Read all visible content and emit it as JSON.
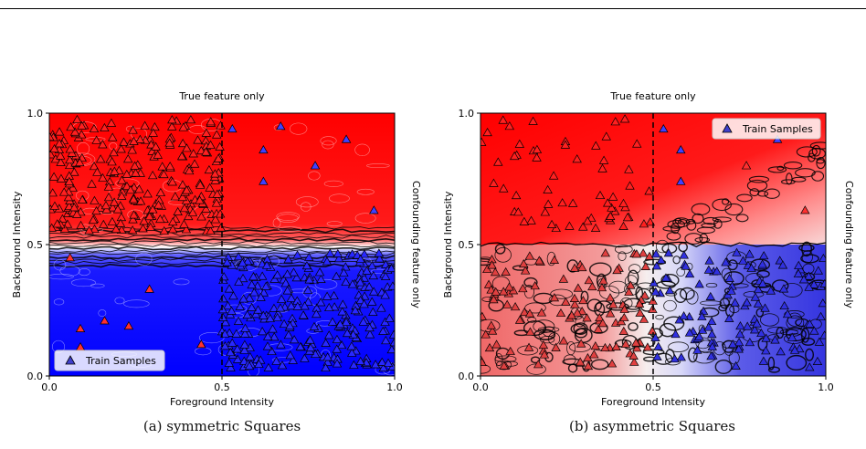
{
  "chart_data": [
    {
      "type": "scatter",
      "panel": "a",
      "title": "True feature only",
      "xlabel": "Foreground Intensity",
      "ylabel": "Background Intensity",
      "right_label": "Confounding feature only",
      "xlim": [
        0.0,
        1.0
      ],
      "ylim": [
        0.0,
        1.0
      ],
      "x_ticks": [
        "0.0",
        "0.5",
        "1.0"
      ],
      "y_ticks": [
        "0.0",
        "0.5",
        "1.0"
      ],
      "background": "contour",
      "decision_boundary": "horizontal",
      "boundary_y": 0.49,
      "dashed_vline_x": 0.5,
      "top_color": "#ff0000",
      "bottom_color": "#0000ff",
      "legend": {
        "label": "Train Samples",
        "position": "lower-left"
      },
      "series": [
        {
          "name": "Train Samples",
          "marker": "triangle",
          "clusters": [
            {
              "region": "x 0.0-0.5, y 0.55-0.98",
              "fill": "#ff2020",
              "count": 260
            },
            {
              "region": "x 0.5-1.0, y 0.03-0.47",
              "fill": "#2828ff",
              "count": 260
            }
          ],
          "points": [
            {
              "x": 0.53,
              "y": 0.94,
              "fill": "#4040ff"
            },
            {
              "x": 0.67,
              "y": 0.95,
              "fill": "#4040ff"
            },
            {
              "x": 0.62,
              "y": 0.86,
              "fill": "#4040ff"
            },
            {
              "x": 0.77,
              "y": 0.8,
              "fill": "#4040ff"
            },
            {
              "x": 0.86,
              "y": 0.9,
              "fill": "#4040ff"
            },
            {
              "x": 0.62,
              "y": 0.74,
              "fill": "#4040ff"
            },
            {
              "x": 0.94,
              "y": 0.63,
              "fill": "#4040ff"
            },
            {
              "x": 0.06,
              "y": 0.45,
              "fill": "#ff3030"
            },
            {
              "x": 0.29,
              "y": 0.33,
              "fill": "#ff3030"
            },
            {
              "x": 0.09,
              "y": 0.18,
              "fill": "#ff3030"
            },
            {
              "x": 0.16,
              "y": 0.21,
              "fill": "#ff3030"
            },
            {
              "x": 0.23,
              "y": 0.19,
              "fill": "#ff3030"
            },
            {
              "x": 0.09,
              "y": 0.11,
              "fill": "#ff3030"
            },
            {
              "x": 0.44,
              "y": 0.12,
              "fill": "#ff3030"
            }
          ]
        }
      ],
      "caption": "(a) symmetric Squares"
    },
    {
      "type": "scatter",
      "panel": "b",
      "title": "True feature only",
      "xlabel": "Foreground Intensity",
      "ylabel": "Background Intensity",
      "right_label": "Confounding feature only",
      "xlim": [
        0.0,
        1.0
      ],
      "ylim": [
        0.0,
        1.0
      ],
      "x_ticks": [
        "0.0",
        "0.5",
        "1.0"
      ],
      "y_ticks": [
        "0.0",
        "0.5",
        "1.0"
      ],
      "background": "contour",
      "decision_boundary": "mixed",
      "boundary_y": 0.5,
      "dashed_vline_x": 0.5,
      "top_color": "#ff0000",
      "bottom_left_color": "#f07070",
      "bottom_right_color": "#3c3ce0",
      "legend": {
        "label": "Train Samples",
        "position": "top-right"
      },
      "series": [
        {
          "name": "Train Samples",
          "marker": "triangle",
          "clusters": [
            {
              "region": "x 0.0-0.5, y 0.55-0.98",
              "fill": "#ff2020",
              "count": 60
            },
            {
              "region": "x 0.0-0.5, y 0.03-0.47",
              "fill": "#e04040",
              "count": 120
            },
            {
              "region": "x 0.5-1.0, y 0.03-0.47",
              "fill": "#3030e0",
              "count": 120
            }
          ],
          "points": [
            {
              "x": 0.53,
              "y": 0.94,
              "fill": "#4040ff"
            },
            {
              "x": 0.58,
              "y": 0.86,
              "fill": "#4040ff"
            },
            {
              "x": 0.77,
              "y": 0.8,
              "fill": "#ff3030"
            },
            {
              "x": 0.86,
              "y": 0.9,
              "fill": "#4040ff"
            },
            {
              "x": 0.58,
              "y": 0.74,
              "fill": "#4040ff"
            },
            {
              "x": 0.94,
              "y": 0.63,
              "fill": "#ff3030"
            }
          ]
        }
      ],
      "caption": "(b) asymmetric Squares"
    }
  ]
}
